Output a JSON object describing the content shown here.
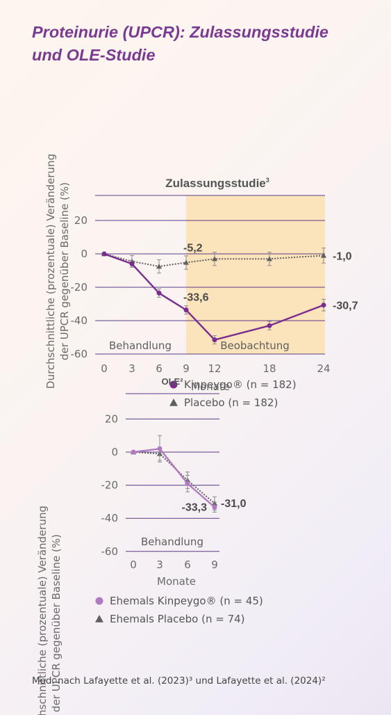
{
  "page_title": [
    "Proteinurie (UPCR): Zulassungsstudie",
    "und OLE-Studie"
  ],
  "footer": "Mod. nach Lafayette et al. (2023)³ und Lafayette et al. (2024)²",
  "colors": {
    "title": "#7b3a92",
    "kinpeygo": "#7b2d8e",
    "placebo": "#5f5f5f",
    "ehemals_kinpeygo": "#b07ac0",
    "observation_band": "#fbe3bc",
    "gridline": "#5a3a86"
  },
  "chart_data": [
    {
      "type": "line",
      "title": "Zulassungsstudie",
      "title_sup": "3",
      "ylabel": [
        "Durchschnittliche (prozentuale) Veränderung",
        "der UPCR gegenüber Baseline (%)"
      ],
      "xlabel": "Monate",
      "x_ticks": [
        0,
        3,
        6,
        9,
        12,
        18,
        24
      ],
      "y_ticks": [
        20,
        0,
        -20,
        -40,
        -60
      ],
      "ylim": [
        -60,
        35
      ],
      "xlim": [
        0,
        24
      ],
      "grid": true,
      "regions": [
        {
          "label": "Behandlung",
          "x_from": 0,
          "x_to": 9
        },
        {
          "label": "Beobachtung",
          "x_from": 9,
          "x_to": 24
        }
      ],
      "series": [
        {
          "name": "Kinpeygo® (n = 182)",
          "marker": "circle",
          "line": "solid",
          "x": [
            0,
            3,
            6,
            9,
            12,
            18,
            24
          ],
          "y": [
            0,
            -6,
            -23.5,
            -33.6,
            -51.5,
            -43,
            -30.7
          ],
          "err": [
            0,
            2,
            2.5,
            2.5,
            2.5,
            2.5,
            3.5
          ]
        },
        {
          "name": "Placebo (n = 182)",
          "marker": "triangle",
          "line": "dotted",
          "x": [
            0,
            3,
            6,
            9,
            12,
            18,
            24
          ],
          "y": [
            0,
            -4.5,
            -7.5,
            -5.2,
            -3,
            -3,
            -1.0
          ],
          "err": [
            0,
            3.5,
            4,
            4,
            4,
            4,
            4.5
          ]
        }
      ],
      "annotations": [
        {
          "text": "-5,2",
          "x": 9,
          "y": -5.2
        },
        {
          "text": "-33,6",
          "x": 9,
          "y": -33.6
        },
        {
          "text": "-1,0",
          "x": 24,
          "y": -1.0
        },
        {
          "text": "-30,7",
          "x": 24,
          "y": -30.7
        }
      ]
    },
    {
      "type": "line",
      "title": "OLE²",
      "ylabel": [
        "Durchschnittliche (prozentuale) Veränderung",
        "der UPCR gegenüber Baseline (%)"
      ],
      "xlabel": "Monate",
      "x_ticks": [
        0,
        3,
        6,
        9
      ],
      "y_ticks": [
        20,
        0,
        -20,
        -40,
        -60
      ],
      "ylim": [
        -60,
        35
      ],
      "xlim": [
        0,
        9
      ],
      "grid": true,
      "regions": [
        {
          "label": "Behandlung",
          "x_from": 0,
          "x_to": 9
        }
      ],
      "series": [
        {
          "name": "Ehemals Kinpeygo® (n = 45)",
          "marker": "circle",
          "line": "solid",
          "x": [
            0,
            3,
            6,
            9
          ],
          "y": [
            0,
            2,
            -19,
            -33.3
          ],
          "err": [
            0,
            8,
            5,
            3
          ]
        },
        {
          "name": "Ehemals Placebo (n = 74)",
          "marker": "triangle",
          "line": "dotted",
          "x": [
            0,
            3,
            6,
            9
          ],
          "y": [
            0,
            -1,
            -17,
            -31.0
          ],
          "err": [
            0,
            4,
            5,
            4
          ]
        }
      ],
      "annotations": [
        {
          "text": "-31,0",
          "x": 9,
          "y": -31.0
        },
        {
          "text": "-33,3",
          "x": 9,
          "y": -33.3
        }
      ]
    }
  ]
}
